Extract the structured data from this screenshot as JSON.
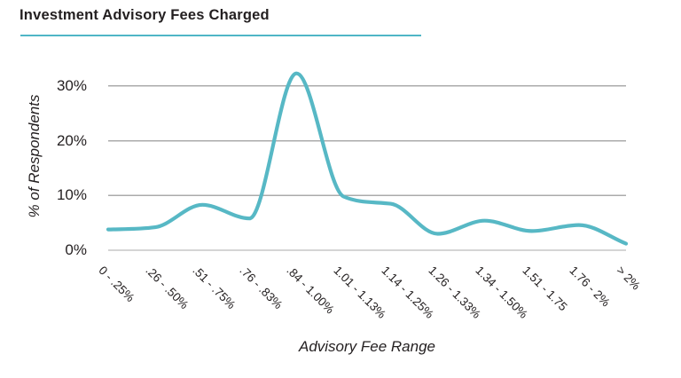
{
  "header": {
    "title": "Investment Advisory Fees Charged"
  },
  "colors": {
    "accent_teal": "#4fb6c6",
    "line_teal": "#57b8c5",
    "grid_gray": "#ababab",
    "text_dark": "#231f20"
  },
  "chart_data": {
    "type": "line",
    "title": "Investment Advisory Fees Charged",
    "xlabel": "Advisory Fee Range",
    "ylabel": "% of Respondents",
    "categories": [
      "0 - .25%",
      ".26 - .50%",
      ".51 - .75%",
      ".76 - .83%",
      ".84 - 1.00%",
      "1.01 - 1.13%",
      "1.14 - 1.25%",
      "1.26 - 1.33%",
      "1.34 - 1.50%",
      "1.51 - 1.75",
      "1.76 - 2%",
      "> 2%"
    ],
    "values": [
      3.8,
      4.2,
      8.3,
      5.8,
      32.3,
      9.8,
      8.5,
      3.0,
      5.4,
      3.5,
      4.6,
      1.2
    ],
    "yticks": [
      0,
      10,
      20,
      30
    ],
    "ytick_labels": [
      "0%",
      "10%",
      "20%",
      "30%"
    ],
    "ylim": [
      0,
      35
    ],
    "grid": "horizontal",
    "legend": "none",
    "smooth": true,
    "line_color": "#57b8c5"
  }
}
